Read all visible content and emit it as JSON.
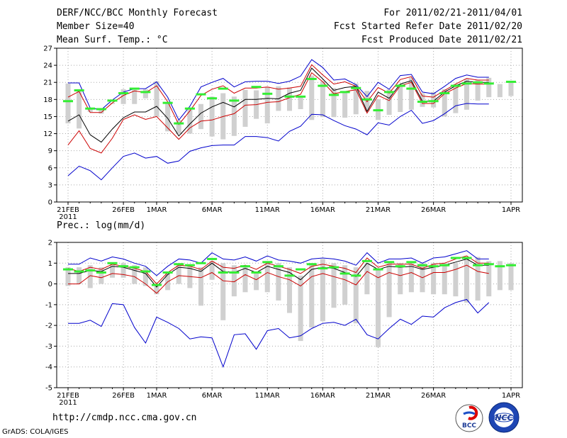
{
  "header": {
    "title": "DERF/NCC/BCC Monthly Forecast",
    "member_size": "Member Size=40",
    "variable": "Mean Surf. Temp.: °C",
    "period": "For 2011/02/21-2011/04/01",
    "refer_date": "Fcst Started Refer Date 2011/02/20",
    "produced_date": "Fcst Produced Date 2011/02/21"
  },
  "colors": {
    "envelope": "#0000cc",
    "spread": "#cc0000",
    "mean": "#000000",
    "bar": "#d0d0d0",
    "obs": "#33ee33"
  },
  "chart_data": [
    {
      "type": "line",
      "title": "Mean Surf. Temp.: °C",
      "ylim": [
        0,
        27
      ],
      "yticks": [
        0,
        3,
        6,
        9,
        12,
        15,
        18,
        21,
        24,
        27
      ],
      "x_tick_labels": [
        "21FEB",
        "26FEB",
        "1MAR",
        "6MAR",
        "11MAR",
        "16MAR",
        "21MAR",
        "26MAR",
        "1APR"
      ],
      "x_tick_days": [
        0,
        5,
        8,
        13,
        18,
        23,
        28,
        33,
        40
      ],
      "x_sub_label": "2011",
      "n_days": 41,
      "series": [
        {
          "name": "max",
          "values": [
            20.9,
            20.9,
            16.5,
            16.2,
            17.9,
            19.3,
            19.9,
            19.9,
            21.1,
            18.4,
            14.4,
            16.8,
            20.2,
            21.0,
            21.7,
            20.2,
            21.1,
            21.2,
            21.2,
            20.8,
            21.2,
            22.1,
            25.0,
            23.6,
            21.4,
            21.6,
            20.6,
            18.5,
            21.0,
            19.8,
            22.2,
            22.4,
            19.3,
            19.0,
            20.3,
            21.7,
            22.3,
            21.9,
            21.9,
            null,
            null
          ]
        },
        {
          "name": "upper",
          "values": [
            18.4,
            19.4,
            15.7,
            15.7,
            17.4,
            18.7,
            19.5,
            19.2,
            20.4,
            17.6,
            13.6,
            16.0,
            18.7,
            19.8,
            20.4,
            19.1,
            20.0,
            20.0,
            20.2,
            19.8,
            20.0,
            20.3,
            24.1,
            22.3,
            20.7,
            21.1,
            20.3,
            17.6,
            20.1,
            19.1,
            21.5,
            22.0,
            18.6,
            18.4,
            19.6,
            20.7,
            21.7,
            21.4,
            21.4,
            null,
            null
          ]
        },
        {
          "name": "mean",
          "values": [
            14.2,
            15.3,
            11.8,
            10.5,
            12.8,
            14.8,
            15.8,
            15.8,
            16.8,
            14.7,
            11.6,
            13.7,
            15.6,
            16.7,
            17.5,
            16.7,
            18.0,
            18.0,
            18.2,
            18.1,
            19.1,
            19.6,
            23.5,
            21.6,
            19.6,
            20.1,
            20.3,
            15.9,
            19.3,
            18.2,
            20.7,
            21.3,
            17.7,
            17.7,
            19.3,
            20.4,
            21.2,
            21.0,
            21.0,
            null,
            null
          ]
        },
        {
          "name": "lower",
          "values": [
            10.0,
            12.5,
            9.4,
            8.6,
            11.2,
            14.5,
            15.3,
            14.5,
            15.0,
            13.0,
            11.0,
            13.0,
            14.2,
            14.4,
            15.0,
            15.5,
            17.0,
            17.1,
            17.5,
            17.6,
            18.3,
            18.9,
            22.7,
            21.1,
            19.0,
            19.4,
            19.7,
            15.6,
            18.7,
            17.8,
            20.4,
            21.0,
            17.3,
            17.3,
            19.0,
            20.0,
            20.8,
            20.7,
            20.7,
            null,
            null
          ]
        },
        {
          "name": "min",
          "values": [
            4.6,
            6.3,
            5.5,
            3.9,
            6.0,
            8.0,
            8.6,
            7.7,
            8.0,
            6.8,
            7.2,
            8.9,
            9.5,
            9.9,
            10.0,
            10.0,
            11.5,
            11.5,
            11.3,
            10.7,
            12.4,
            13.3,
            15.4,
            15.3,
            14.3,
            13.4,
            12.8,
            11.8,
            13.9,
            13.5,
            15.0,
            16.1,
            13.8,
            14.3,
            15.5,
            16.9,
            17.3,
            17.2,
            17.2,
            null,
            null
          ]
        }
      ],
      "bars": [
        [
          20.8,
          13.8
        ],
        [
          19.8,
          12.9
        ],
        [
          16.5,
          15.8
        ],
        [
          16.4,
          15.5
        ],
        [
          17.4,
          17.2
        ],
        [
          19.8,
          17.2
        ],
        [
          19.7,
          17.2
        ],
        [
          19.8,
          18.2
        ],
        [
          21.2,
          15.0
        ],
        [
          17.4,
          12.4
        ],
        [
          14.4,
          12.0
        ],
        [
          16.2,
          12.0
        ],
        [
          17.2,
          12.8
        ],
        [
          18.5,
          11.5
        ],
        [
          19.1,
          11.0
        ],
        [
          18.5,
          11.6
        ],
        [
          19.7,
          13.2
        ],
        [
          19.6,
          14.6
        ],
        [
          20.2,
          13.8
        ],
        [
          20.3,
          16.0
        ],
        [
          20.1,
          16.0
        ],
        [
          18.4,
          16.3
        ],
        [
          22.2,
          14.4
        ],
        [
          21.2,
          14.9
        ],
        [
          20.0,
          14.9
        ],
        [
          19.4,
          14.8
        ],
        [
          20.8,
          15.4
        ],
        [
          19.5,
          15.9
        ],
        [
          18.0,
          14.4
        ],
        [
          19.8,
          15.3
        ],
        [
          20.7,
          15.8
        ],
        [
          21.8,
          16.2
        ],
        [
          19.1,
          16.7
        ],
        [
          19.3,
          16.6
        ],
        [
          19.8,
          15.0
        ],
        [
          20.7,
          15.6
        ],
        [
          21.6,
          16.2
        ],
        [
          21.4,
          17.8
        ],
        [
          21.8,
          18.4
        ],
        [
          20.7,
          18.4
        ],
        [
          21.2,
          18.6
        ]
      ],
      "obs": [
        17.7,
        19.6,
        16.4,
        16.3,
        17.8,
        19.1,
        19.9,
        19.3,
        null,
        17.4,
        13.8,
        16.4,
        18.9,
        18.2,
        19.9,
        17.8,
        null,
        20.2,
        19.0,
        null,
        18.5,
        18.5,
        21.6,
        20.4,
        18.8,
        19.3,
        20.0,
        18.0,
        16.1,
        19.3,
        20.4,
        19.9,
        17.6,
        17.7,
        19.1,
        20.4,
        20.8,
        21.0,
        20.8,
        null,
        21.1
      ]
    },
    {
      "type": "line",
      "title": "Prec.: log(mm/d)",
      "ylim": [
        -5,
        2
      ],
      "yticks": [
        -5,
        -4,
        -3,
        -2,
        -1,
        0,
        1,
        2
      ],
      "x_tick_labels": [
        "21FEB",
        "26FEB",
        "1MAR",
        "6MAR",
        "11MAR",
        "16MAR",
        "21MAR",
        "26MAR",
        "1APR"
      ],
      "x_tick_days": [
        0,
        5,
        8,
        13,
        18,
        23,
        28,
        33,
        40
      ],
      "x_sub_label": "2011",
      "n_days": 41,
      "series": [
        {
          "name": "max",
          "values": [
            0.95,
            0.95,
            1.25,
            1.1,
            1.3,
            1.2,
            1.0,
            0.85,
            0.4,
            0.85,
            1.2,
            1.15,
            1.0,
            1.5,
            1.2,
            1.15,
            1.3,
            1.1,
            1.35,
            1.15,
            1.1,
            1.0,
            1.2,
            1.25,
            1.2,
            1.1,
            0.9,
            1.5,
            1.0,
            1.2,
            1.2,
            1.25,
            1.0,
            1.25,
            1.3,
            1.45,
            1.6,
            1.2,
            1.2,
            null,
            null
          ]
        },
        {
          "name": "upper",
          "values": [
            0.75,
            0.6,
            0.8,
            0.7,
            0.95,
            0.85,
            0.75,
            0.6,
            0.0,
            0.55,
            0.9,
            0.85,
            0.7,
            1.1,
            0.8,
            0.75,
            0.9,
            0.7,
            1.0,
            0.85,
            0.7,
            0.5,
            0.85,
            0.95,
            0.85,
            0.75,
            0.55,
            1.25,
            0.8,
            0.95,
            0.95,
            0.95,
            0.75,
            0.95,
            1.0,
            1.2,
            1.35,
            1.0,
            1.0,
            null,
            null
          ]
        },
        {
          "name": "mean",
          "values": [
            0.5,
            0.5,
            0.65,
            0.6,
            0.85,
            0.8,
            0.65,
            0.5,
            -0.15,
            0.45,
            0.8,
            0.75,
            0.6,
            1.0,
            0.6,
            0.55,
            0.75,
            0.55,
            0.85,
            0.7,
            0.55,
            0.2,
            0.7,
            0.8,
            0.75,
            0.55,
            0.35,
            1.0,
            0.7,
            0.85,
            0.8,
            0.85,
            0.7,
            0.8,
            0.9,
            1.05,
            1.2,
            0.9,
            0.9,
            null,
            null
          ]
        },
        {
          "name": "lower",
          "values": [
            0.0,
            0.0,
            0.4,
            0.3,
            0.5,
            0.45,
            0.35,
            0.0,
            -0.45,
            0.1,
            0.4,
            0.35,
            0.3,
            0.55,
            0.15,
            0.1,
            0.45,
            0.2,
            0.55,
            0.35,
            0.2,
            -0.1,
            0.35,
            0.5,
            0.35,
            0.2,
            -0.05,
            0.6,
            0.3,
            0.55,
            0.4,
            0.55,
            0.3,
            0.55,
            0.55,
            0.7,
            0.9,
            0.6,
            0.5,
            null,
            null
          ]
        },
        {
          "name": "min",
          "values": [
            -1.9,
            -1.9,
            -1.75,
            -2.05,
            -0.95,
            -1.0,
            -2.1,
            -2.85,
            -1.6,
            -1.85,
            -2.15,
            -2.65,
            -2.55,
            -2.6,
            -4.0,
            -2.45,
            -2.4,
            -3.15,
            -2.25,
            -2.15,
            -2.6,
            -2.5,
            -2.15,
            -1.9,
            -1.85,
            -2.0,
            -1.7,
            -2.45,
            -2.65,
            -2.15,
            -1.7,
            -1.95,
            -1.55,
            -1.6,
            -1.15,
            -0.9,
            -0.75,
            -1.4,
            -0.9,
            null,
            null
          ]
        }
      ],
      "bars": [
        [
          0.8,
          -0.1
        ],
        [
          0.8,
          0.0
        ],
        [
          0.9,
          -0.2
        ],
        [
          0.8,
          0.0
        ],
        [
          1.0,
          0.3
        ],
        [
          1.0,
          0.3
        ],
        [
          0.9,
          0.0
        ],
        [
          0.8,
          -0.1
        ],
        [
          0.0,
          -0.5
        ],
        [
          0.5,
          -0.3
        ],
        [
          0.9,
          0.0
        ],
        [
          0.9,
          -0.2
        ],
        [
          0.8,
          -1.05
        ],
        [
          1.1,
          0.2
        ],
        [
          1.0,
          -1.75
        ],
        [
          0.9,
          -0.6
        ],
        [
          0.9,
          -0.4
        ],
        [
          0.6,
          -0.3
        ],
        [
          1.1,
          -0.4
        ],
        [
          1.0,
          -0.8
        ],
        [
          0.8,
          -1.4
        ],
        [
          0.4,
          -2.75
        ],
        [
          1.0,
          -2.1
        ],
        [
          1.2,
          -1.8
        ],
        [
          1.0,
          -1.15
        ],
        [
          0.9,
          -1.0
        ],
        [
          0.8,
          -1.9
        ],
        [
          1.0,
          -0.5
        ],
        [
          0.7,
          -3.05
        ],
        [
          1.0,
          -1.6
        ],
        [
          1.0,
          -0.5
        ],
        [
          1.0,
          -0.4
        ],
        [
          1.0,
          -0.4
        ],
        [
          1.0,
          -0.5
        ],
        [
          1.0,
          -0.5
        ],
        [
          1.0,
          -0.6
        ],
        [
          1.3,
          -0.9
        ],
        [
          1.3,
          -0.8
        ],
        [
          1.1,
          -0.6
        ],
        [
          1.1,
          -0.3
        ],
        [
          1.0,
          -0.3
        ]
      ],
      "obs": [
        0.7,
        0.6,
        0.65,
        0.55,
        1.0,
        0.85,
        0.8,
        0.6,
        -0.05,
        0.55,
        0.95,
        0.9,
        1.0,
        1.2,
        0.55,
        0.55,
        0.85,
        0.55,
        1.05,
        0.85,
        0.4,
        0.7,
        0.95,
        0.75,
        0.8,
        0.5,
        0.4,
        1.1,
        0.7,
        1.05,
        0.85,
        1.05,
        0.9,
        0.85,
        0.9,
        1.25,
        1.25,
        0.9,
        0.95,
        0.85,
        0.9
      ]
    }
  ],
  "footer": {
    "url": "http://cmdp.ncc.cma.gov.cn",
    "grads": "GrADS: COLA/IGES",
    "logo_bcc": "BCC",
    "logo_ncc": "NCC"
  }
}
